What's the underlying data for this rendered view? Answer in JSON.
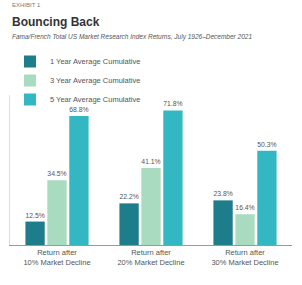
{
  "chart_data": {
    "type": "bar",
    "annotations": [
      "EXHIBIT 1"
    ],
    "title": "Bouncing Back",
    "subtitle": "Fama/French Total US Market Research Index Returns, July 1926–December 2021",
    "categories": [
      "Return after 10% Market Decline",
      "Return after 20% Market Decline",
      "Return after 30% Market Decline"
    ],
    "series": [
      {
        "name": "1 Year Average Cumulative",
        "color": "#1d7d8a",
        "values": [
          12.5,
          22.2,
          23.8
        ],
        "value_labels": [
          "12.5%",
          "22.2%",
          "23.8%"
        ]
      },
      {
        "name": "3 Year Average Cumulative",
        "color": "#a8dbbf",
        "values": [
          34.5,
          41.1,
          16.4
        ],
        "value_labels": [
          "34.5%",
          "41.1%",
          "16.4%"
        ]
      },
      {
        "name": "5 Year Average Cumulative",
        "color": "#33b7c3",
        "values": [
          68.8,
          71.8,
          50.3
        ],
        "value_labels": [
          "68.8%",
          "71.8%",
          "50.3%"
        ]
      }
    ],
    "ylim": [
      0,
      80
    ],
    "grid": false,
    "legend": "top-left",
    "data_labels": true,
    "tick_labels": "x"
  }
}
